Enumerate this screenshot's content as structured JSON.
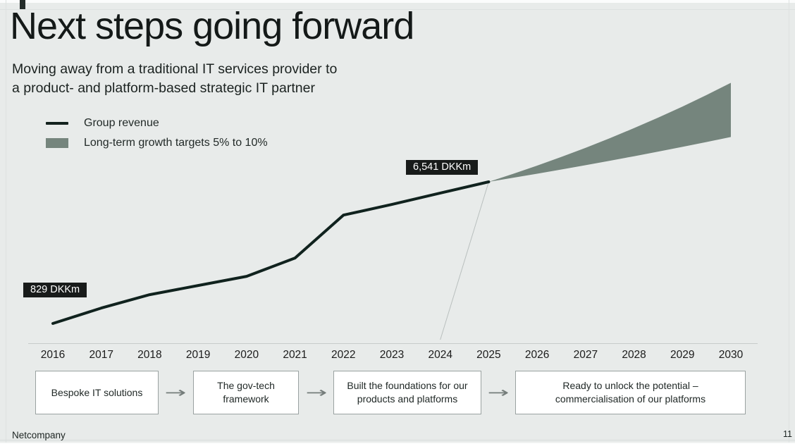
{
  "slide": {
    "title": "Next steps going forward",
    "subtitle_line1": "Moving away from a traditional IT services provider to",
    "subtitle_line2": "a product- and platform-based strategic IT partner",
    "footer": {
      "company": "Netcompany",
      "page_number": "11"
    }
  },
  "legend": {
    "items": [
      {
        "label": "Group revenue",
        "swatch": "line",
        "color": "#13221e"
      },
      {
        "label": "Long-term growth targets 5% to 10%",
        "swatch": "area",
        "color": "#75857d"
      }
    ]
  },
  "chart_data": {
    "type": "line",
    "title": "",
    "xlabel": "",
    "ylabel": "DKKm",
    "grid": false,
    "y_axis_visible": false,
    "legend_position": "top-left",
    "x": [
      2016,
      2017,
      2018,
      2019,
      2020,
      2021,
      2022,
      2023,
      2024,
      2025
    ],
    "series": [
      {
        "name": "Group revenue",
        "values": [
          829,
          1450,
          1990,
          2360,
          2730,
          3470,
          5200,
          5630,
          6090,
          6541
        ]
      }
    ],
    "projection": {
      "label": "Long-term growth targets 5% to 10%",
      "start_year": 2025,
      "start_value": 6541,
      "end_year": 2030,
      "low_growth_pct": 5,
      "high_growth_pct": 10,
      "end_value_low": 8348,
      "end_value_high": 10534
    },
    "annotations": [
      {
        "text": "829 DKKm",
        "year": 2016,
        "value": 829
      },
      {
        "text": "6,541 DKKm",
        "year": 2025,
        "value": 6541,
        "leader_to_year": 2024
      }
    ],
    "x_ticks": [
      "2016",
      "2017",
      "2018",
      "2019",
      "2020",
      "2021",
      "2022",
      "2023",
      "2024",
      "2025",
      "2026",
      "2027",
      "2028",
      "2029",
      "2030"
    ]
  },
  "milestones": [
    {
      "label": "Bespoke IT solutions"
    },
    {
      "label": "The gov-tech\nframework"
    },
    {
      "label": "Built the foundations for our\nproducts and platforms"
    },
    {
      "label": "Ready to unlock the potential –\ncommercialisation of our platforms"
    }
  ],
  "colors": {
    "background": "#e8ebea",
    "revenue_line": "#10221e",
    "growth_fan": "#75857d",
    "data_label_bg": "#181b1a",
    "data_label_text": "#ffffff",
    "axis_line": "#c7cccb",
    "leader_line": "#b9bfbe",
    "box_border": "#9aa2a1",
    "arrow": "#757d7b"
  }
}
